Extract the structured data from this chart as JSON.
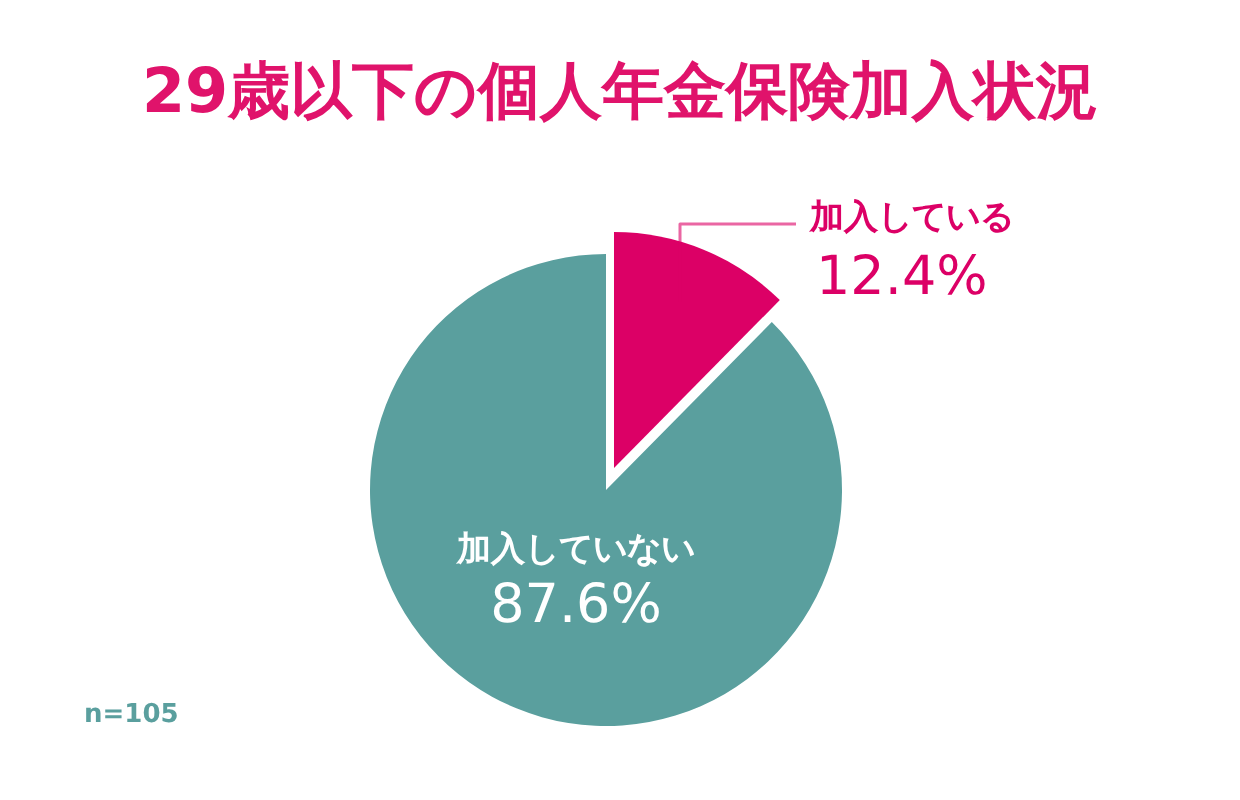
{
  "chart_data": {
    "type": "pie",
    "title": "29歳以下の個人年金保険加入状況",
    "categories": [
      "加入している",
      "加入していない"
    ],
    "values": [
      12.4,
      87.6
    ],
    "value_labels": [
      "12.4%",
      "87.6%"
    ],
    "colors": [
      "#dc0066",
      "#5a9f9e"
    ],
    "annotations": [
      "n=105"
    ]
  }
}
